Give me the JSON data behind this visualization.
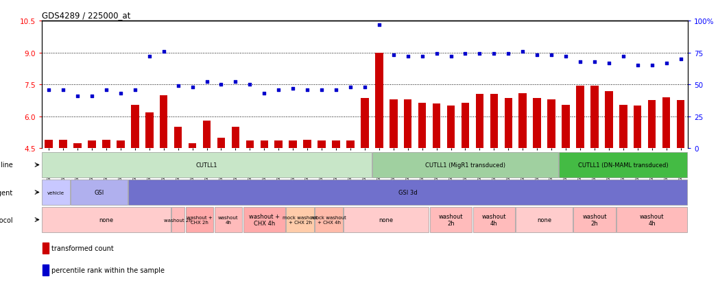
{
  "title": "GDS4289 / 225000_at",
  "samples": [
    "GSM731500",
    "GSM731501",
    "GSM731502",
    "GSM731503",
    "GSM731504",
    "GSM731505",
    "GSM731518",
    "GSM731519",
    "GSM731520",
    "GSM731506",
    "GSM731507",
    "GSM731508",
    "GSM731509",
    "GSM731510",
    "GSM731511",
    "GSM731512",
    "GSM731513",
    "GSM731514",
    "GSM731515",
    "GSM731516",
    "GSM731517",
    "GSM731521",
    "GSM731522",
    "GSM731523",
    "GSM731524",
    "GSM731525",
    "GSM731526",
    "GSM731527",
    "GSM731528",
    "GSM731529",
    "GSM731531",
    "GSM731532",
    "GSM731533",
    "GSM731534",
    "GSM731535",
    "GSM731536",
    "GSM731537",
    "GSM731538",
    "GSM731539",
    "GSM731540",
    "GSM731541",
    "GSM731542",
    "GSM731543",
    "GSM731544",
    "GSM731545"
  ],
  "bar_values": [
    4.9,
    4.9,
    4.75,
    4.85,
    4.9,
    4.85,
    6.55,
    6.2,
    7.0,
    5.5,
    4.75,
    5.8,
    5.0,
    5.5,
    4.85,
    4.85,
    4.85,
    4.85,
    4.9,
    4.85,
    4.85,
    4.85,
    6.85,
    9.0,
    6.8,
    6.8,
    6.65,
    6.6,
    6.5,
    6.65,
    7.05,
    7.05,
    6.85,
    7.1,
    6.85,
    6.8,
    6.55,
    7.45,
    7.45,
    7.2,
    6.55,
    6.5,
    6.75,
    6.9,
    6.75
  ],
  "blue_values_pct": [
    46,
    46,
    41,
    41,
    46,
    43,
    46,
    72,
    76,
    49,
    48,
    52,
    50,
    52,
    50,
    43,
    46,
    47,
    46,
    46,
    46,
    48,
    48,
    97,
    73,
    72,
    72,
    74,
    72,
    74,
    74,
    74,
    74,
    76,
    73,
    73,
    72,
    68,
    68,
    67,
    72,
    65,
    65,
    67,
    70
  ],
  "ylim_left": [
    4.5,
    10.5
  ],
  "ylim_right": [
    0,
    100
  ],
  "yticks_left": [
    4.5,
    6.0,
    7.5,
    9.0,
    10.5
  ],
  "yticks_right": [
    0,
    25,
    50,
    75,
    100
  ],
  "hlines": [
    6.0,
    7.5,
    9.0
  ],
  "bar_color": "#cc0000",
  "dot_color": "#0000cc",
  "cell_line_sections": [
    {
      "label": "CUTLL1",
      "start": 0,
      "end": 22,
      "color": "#c8e6c8"
    },
    {
      "label": "CUTLL1 (MigR1 transduced)",
      "start": 23,
      "end": 35,
      "color": "#a0d0a0"
    },
    {
      "label": "CUTLL1 (DN-MAML transduced)",
      "start": 36,
      "end": 44,
      "color": "#44bb44"
    }
  ],
  "agent_sections": [
    {
      "label": "vehicle",
      "start": 0,
      "end": 1,
      "color": "#c8c8ff"
    },
    {
      "label": "GSI",
      "start": 2,
      "end": 5,
      "color": "#b0b0ee"
    },
    {
      "label": "GSI 3d",
      "start": 6,
      "end": 44,
      "color": "#7070cc"
    }
  ],
  "protocol_sections": [
    {
      "label": "none",
      "start": 0,
      "end": 8,
      "color": "#ffcccc"
    },
    {
      "label": "washout 2h",
      "start": 9,
      "end": 9,
      "color": "#ffbbbb"
    },
    {
      "label": "washout +\nCHX 2h",
      "start": 10,
      "end": 11,
      "color": "#ffaaaa"
    },
    {
      "label": "washout\n4h",
      "start": 12,
      "end": 13,
      "color": "#ffbbbb"
    },
    {
      "label": "washout +\nCHX 4h",
      "start": 14,
      "end": 16,
      "color": "#ffaaaa"
    },
    {
      "label": "mock washout\n+ CHX 2h",
      "start": 17,
      "end": 18,
      "color": "#ffccaa"
    },
    {
      "label": "mock washout\n+ CHX 4h",
      "start": 19,
      "end": 20,
      "color": "#ffbbaa"
    },
    {
      "label": "none",
      "start": 21,
      "end": 26,
      "color": "#ffcccc"
    },
    {
      "label": "washout\n2h",
      "start": 27,
      "end": 29,
      "color": "#ffbbbb"
    },
    {
      "label": "washout\n4h",
      "start": 30,
      "end": 32,
      "color": "#ffbbbb"
    },
    {
      "label": "none",
      "start": 33,
      "end": 36,
      "color": "#ffcccc"
    },
    {
      "label": "washout\n2h",
      "start": 37,
      "end": 39,
      "color": "#ffbbbb"
    },
    {
      "label": "washout\n4h",
      "start": 40,
      "end": 44,
      "color": "#ffbbbb"
    }
  ]
}
